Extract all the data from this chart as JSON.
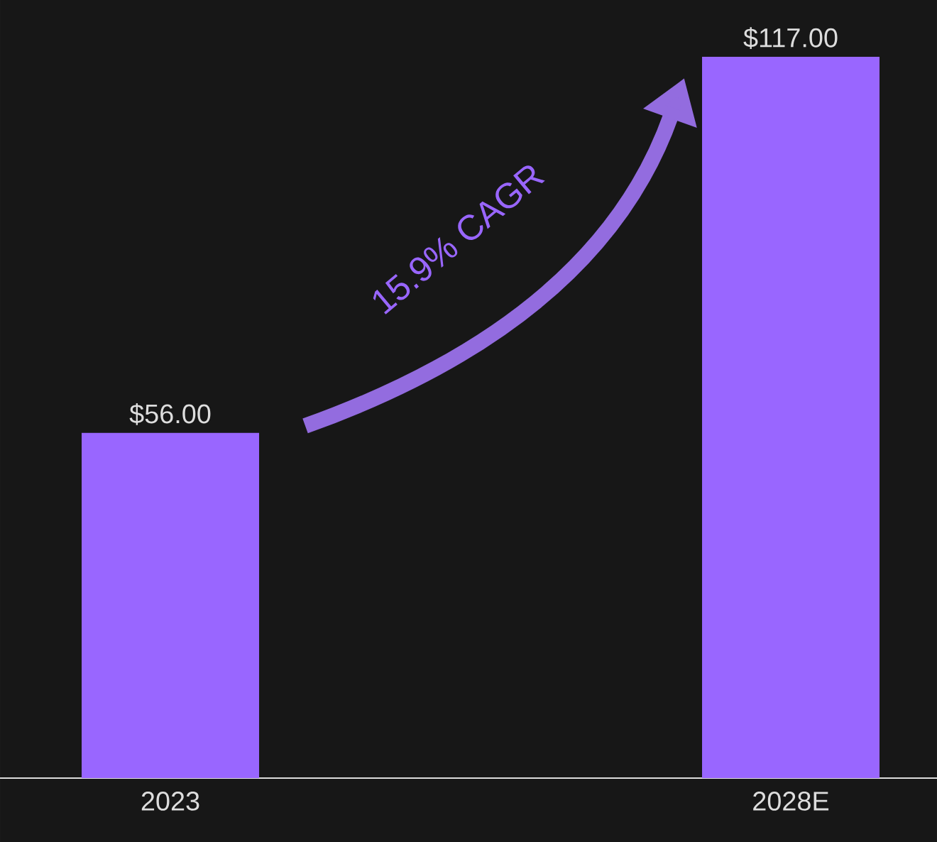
{
  "chart_data": {
    "type": "bar",
    "categories": [
      "2023",
      "2028E"
    ],
    "values": [
      56,
      117
    ],
    "value_labels": [
      "$56.00",
      "$117.00"
    ],
    "color": "#9966ff",
    "annotations": [
      "15.9% CAGR"
    ]
  }
}
